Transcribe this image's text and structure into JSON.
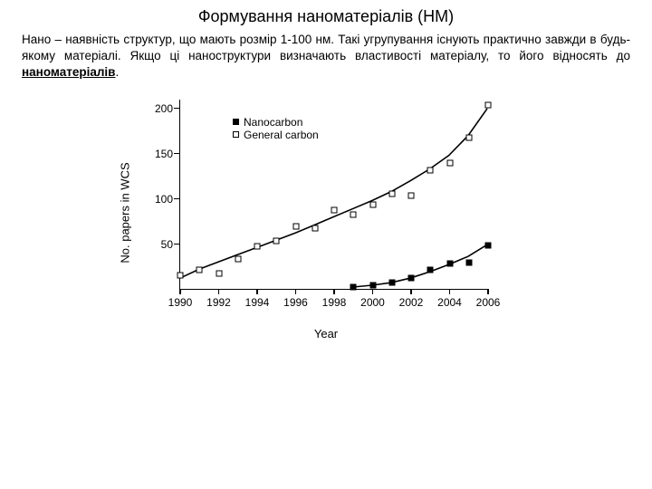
{
  "title": "Формування наноматеріалів (НМ)",
  "paragraph": {
    "part1": "Нано – наявність структур, що мають розмір 1-100 нм. Такі угрупування існують практично завжди в будь-якому матеріалі. Якщо ці наноструктури визначають властивості матеріалу, то його відносять до ",
    "emph": "наноматеріалів",
    "part2": "."
  },
  "chart": {
    "type": "scatter-line",
    "background_color": "#ffffff",
    "axis_color": "#000000",
    "xlabel": "Year",
    "ylabel": "No. papers in WCS",
    "label_fontsize": 13,
    "tick_fontsize": 12,
    "xlim": [
      1990,
      2006
    ],
    "ylim": [
      0,
      210
    ],
    "xticks": [
      1990,
      1992,
      1994,
      1996,
      1998,
      2000,
      2002,
      2004,
      2006
    ],
    "yticks": [
      50,
      100,
      150,
      200
    ],
    "series": [
      {
        "name": "General carbon",
        "marker": "open-square",
        "marker_size": 7,
        "line": true,
        "line_width": 1.6,
        "color": "#000000",
        "points": [
          [
            1990,
            16
          ],
          [
            1991,
            22
          ],
          [
            1992,
            18
          ],
          [
            1993,
            34
          ],
          [
            1994,
            48
          ],
          [
            1995,
            54
          ],
          [
            1996,
            70
          ],
          [
            1997,
            68
          ],
          [
            1998,
            88
          ],
          [
            1999,
            83
          ],
          [
            2000,
            94
          ],
          [
            2001,
            106
          ],
          [
            2002,
            104
          ],
          [
            2003,
            132
          ],
          [
            2004,
            140
          ],
          [
            2005,
            168
          ],
          [
            2006,
            204
          ]
        ],
        "curve": [
          [
            1990,
            12
          ],
          [
            1991,
            22
          ],
          [
            1992,
            30
          ],
          [
            1993,
            38
          ],
          [
            1994,
            46
          ],
          [
            1995,
            54
          ],
          [
            1996,
            62
          ],
          [
            1997,
            71
          ],
          [
            1998,
            80
          ],
          [
            1999,
            89
          ],
          [
            2000,
            98
          ],
          [
            2001,
            108
          ],
          [
            2002,
            120
          ],
          [
            2003,
            133
          ],
          [
            2004,
            148
          ],
          [
            2005,
            170
          ],
          [
            2006,
            200
          ]
        ]
      },
      {
        "name": "Nanocarbon",
        "marker": "filled-square",
        "marker_size": 7,
        "line": true,
        "line_width": 1.6,
        "color": "#000000",
        "points": [
          [
            1999,
            3
          ],
          [
            2000,
            5
          ],
          [
            2001,
            8
          ],
          [
            2002,
            13
          ],
          [
            2003,
            22
          ],
          [
            2004,
            29
          ],
          [
            2005,
            30
          ],
          [
            2006,
            49
          ]
        ],
        "curve": [
          [
            1999,
            2
          ],
          [
            2000,
            4
          ],
          [
            2001,
            7
          ],
          [
            2002,
            12
          ],
          [
            2003,
            19
          ],
          [
            2004,
            27
          ],
          [
            2005,
            36
          ],
          [
            2006,
            49
          ]
        ]
      }
    ],
    "legend": {
      "position": "upper-left",
      "items": [
        {
          "label": "Nanocarbon",
          "marker": "filled-square"
        },
        {
          "label": "General carbon",
          "marker": "open-square"
        }
      ]
    }
  }
}
